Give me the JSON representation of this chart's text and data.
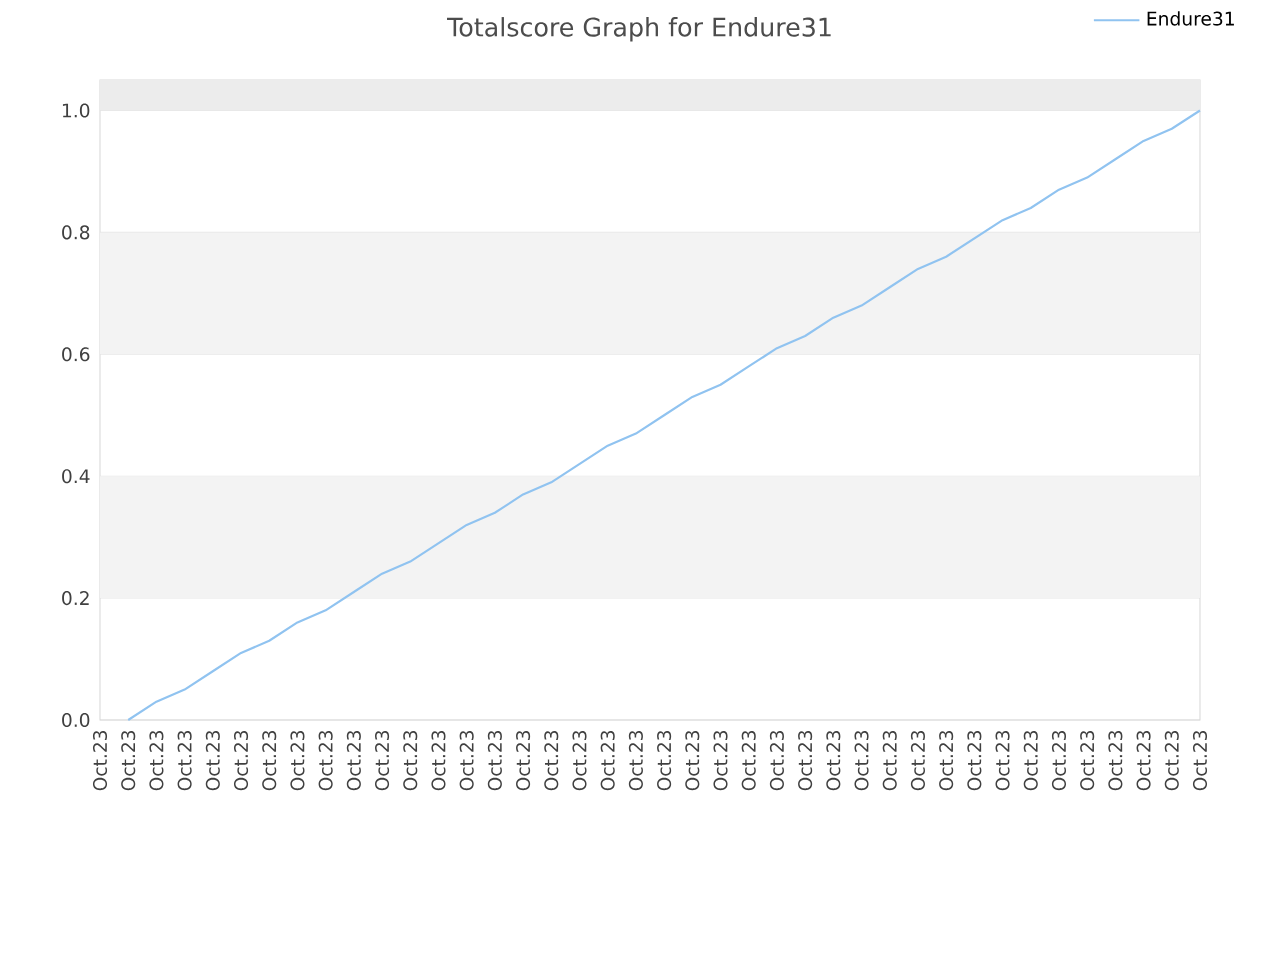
{
  "chart_data": {
    "type": "line",
    "title": "Totalscore Graph for Endure31",
    "categories": [
      "Oct.23",
      "Oct.23",
      "Oct.23",
      "Oct.23",
      "Oct.23",
      "Oct.23",
      "Oct.23",
      "Oct.23",
      "Oct.23",
      "Oct.23",
      "Oct.23",
      "Oct.23",
      "Oct.23",
      "Oct.23",
      "Oct.23",
      "Oct.23",
      "Oct.23",
      "Oct.23",
      "Oct.23",
      "Oct.23",
      "Oct.23",
      "Oct.23",
      "Oct.23",
      "Oct.23",
      "Oct.23",
      "Oct.23",
      "Oct.23",
      "Oct.23",
      "Oct.23",
      "Oct.23",
      "Oct.23",
      "Oct.23",
      "Oct.23",
      "Oct.23",
      "Oct.23",
      "Oct.23",
      "Oct.23",
      "Oct.23",
      "Oct.23",
      "Oct.23"
    ],
    "series": [
      {
        "name": "Endure31",
        "color": "#90c3f0",
        "values": [
          null,
          0.0,
          0.03,
          0.05,
          0.08,
          0.11,
          0.13,
          0.16,
          0.18,
          0.21,
          0.24,
          0.26,
          0.29,
          0.32,
          0.34,
          0.37,
          0.39,
          0.42,
          0.45,
          0.47,
          0.5,
          0.53,
          0.55,
          0.58,
          0.61,
          0.63,
          0.66,
          0.68,
          0.71,
          0.74,
          0.76,
          0.79,
          0.82,
          0.84,
          0.87,
          0.89,
          0.92,
          0.95,
          0.97,
          1.0
        ]
      }
    ],
    "ylim": [
      0,
      1.05
    ],
    "yticks": [
      {
        "value": 0,
        "label": "0.0"
      },
      0.2,
      0.4,
      0.6,
      0.8,
      {
        "value": 1,
        "label": "1.0"
      }
    ],
    "bands": [
      {
        "axis": "y",
        "from": 0.2,
        "to": 0.4,
        "color": "#f3f3f3"
      },
      {
        "axis": "y",
        "from": 0.6,
        "to": 0.8,
        "color": "#f3f3f3"
      },
      {
        "axis": "y",
        "from": 1.0,
        "to": 1.05,
        "color": "#ececec"
      }
    ],
    "grid": "y",
    "legend": "top right",
    "marker": "none",
    "line_style": "solid"
  }
}
